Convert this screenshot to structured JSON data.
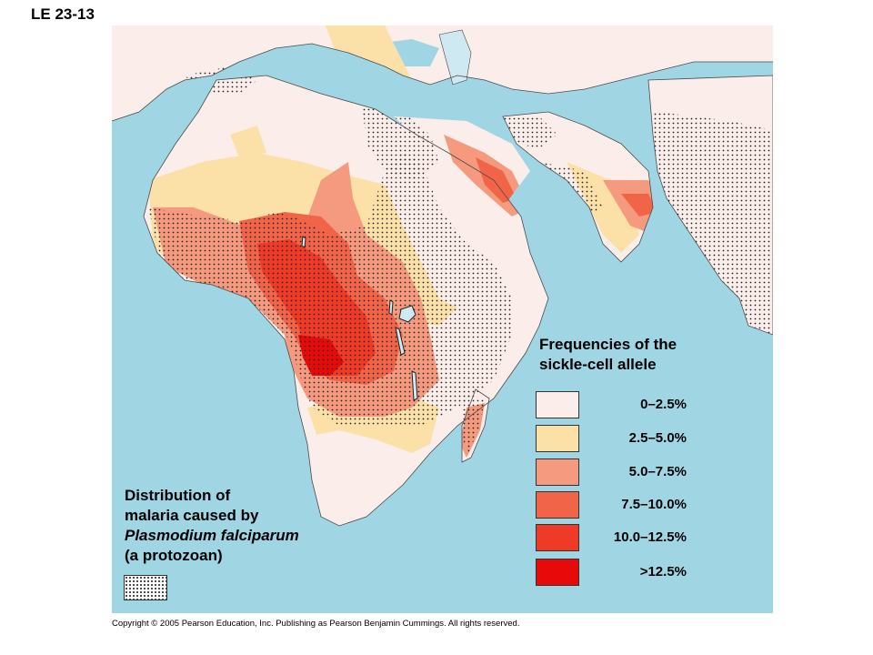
{
  "slide_label": "LE 23-13",
  "legend": {
    "title_line1": "Frequencies of the",
    "title_line2": "sickle-cell allele",
    "items": [
      {
        "label": "0–2.5%",
        "color": "#fbeeea"
      },
      {
        "label": "2.5–5.0%",
        "color": "#fbe0a8"
      },
      {
        "label": "5.0–7.5%",
        "color": "#f59a7e"
      },
      {
        "label": "7.5–10.0%",
        "color": "#f26448"
      },
      {
        "label": "10.0–12.5%",
        "color": "#f03a28"
      },
      {
        "label": ">12.5%",
        "color": "#e80a0a"
      }
    ]
  },
  "malaria_note": {
    "line1": "Distribution of",
    "line2": "malaria caused by",
    "line3": "Plasmodium falciparum",
    "line4": "(a protozoan)"
  },
  "colors": {
    "ocean": "#a0d6e4",
    "land_base": "#fbeeea",
    "dots": "#222222"
  },
  "copyright": "Copyright © 2005 Pearson Education, Inc. Publishing as Pearson Benjamin Cummings. All rights reserved."
}
